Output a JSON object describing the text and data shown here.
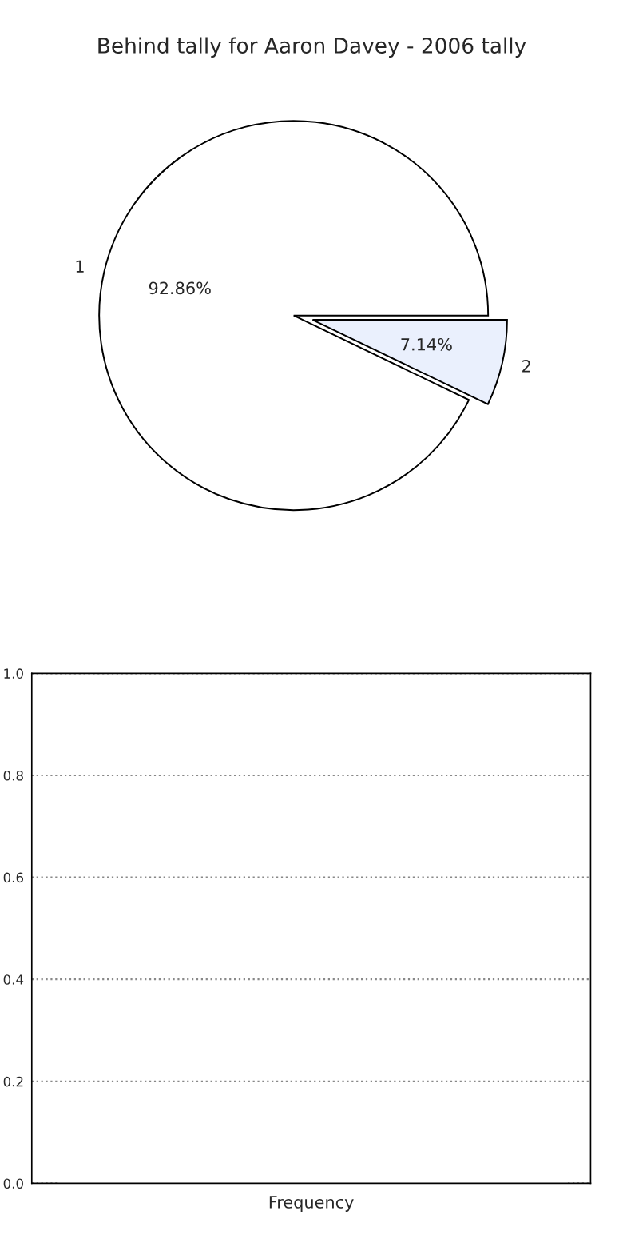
{
  "chart_data": [
    {
      "type": "pie",
      "title": "Behind tally for Aaron Davey - 2006 tally",
      "categories": [
        "1",
        "2"
      ],
      "values": [
        92.86,
        7.14
      ],
      "colors": [
        "#ffffff",
        "#eaf0fd"
      ],
      "value_labels": [
        "92.86%",
        "7.14%"
      ]
    },
    {
      "type": "bar",
      "xlabel": "Frequency",
      "categories": [
        null
      ],
      "values": [
        0
      ],
      "ylim": [
        0,
        1
      ],
      "yticks": [
        {
          "value": 0,
          "label": "0.0"
        },
        {
          "value": 0.2,
          "label": "0.2"
        },
        {
          "value": 0.4,
          "label": "0.4"
        },
        {
          "value": 0.6,
          "label": "0.6"
        },
        {
          "value": 0.8,
          "label": "0.8"
        },
        {
          "value": 1,
          "label": "1.0"
        }
      ],
      "grid": "y"
    }
  ]
}
